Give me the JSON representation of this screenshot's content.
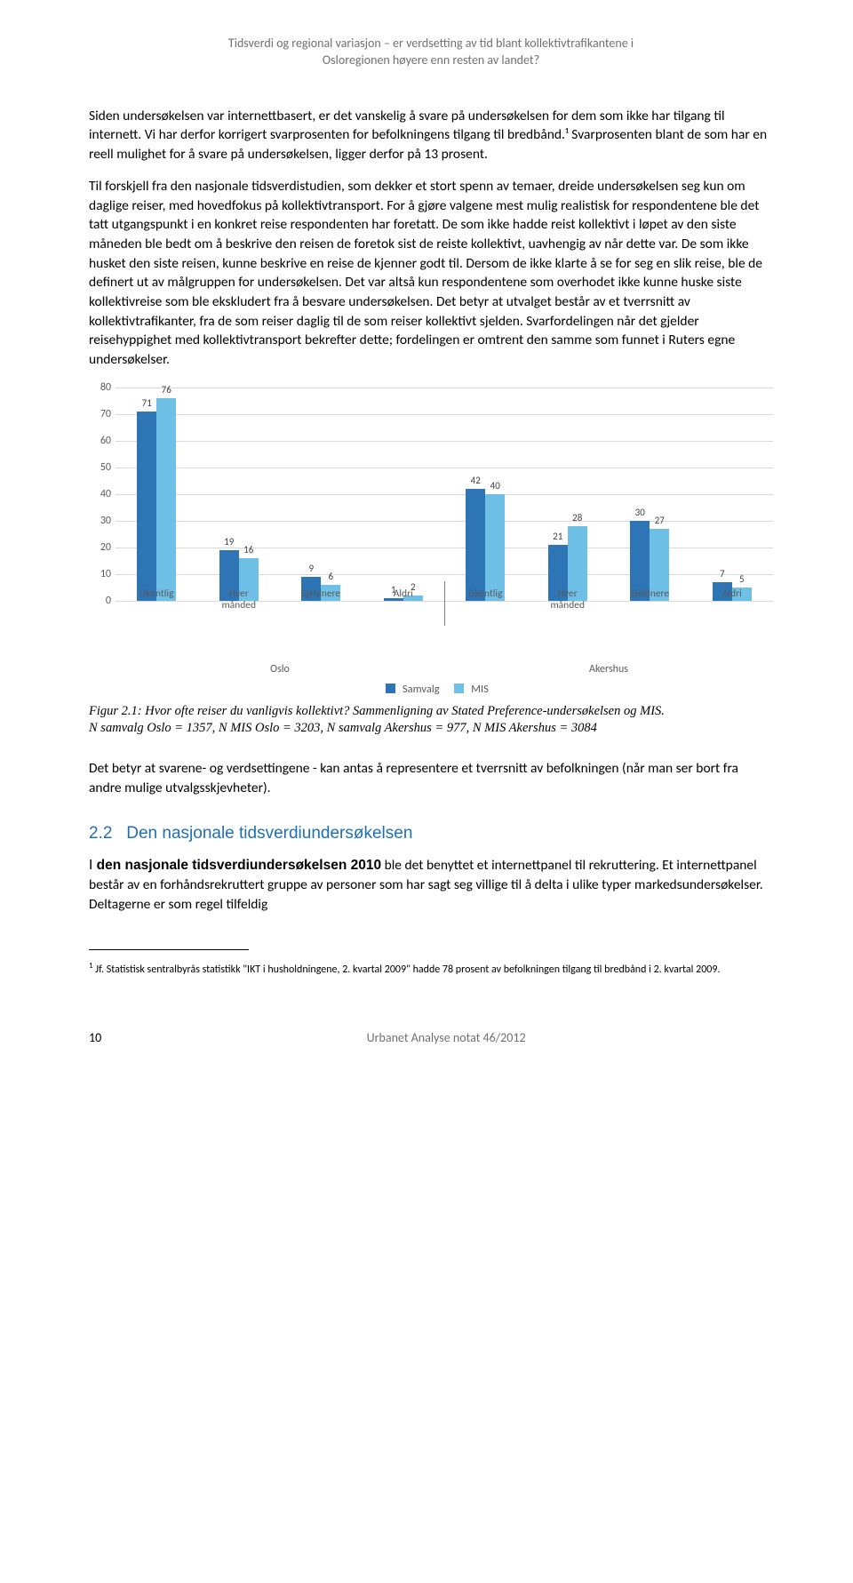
{
  "header": {
    "line1": "Tidsverdi og regional variasjon – er verdsetting av tid blant kollektivtrafikantene i",
    "line2": "Osloregionen høyere enn resten av landet?"
  },
  "paragraphs": {
    "p1": "Siden undersøkelsen var internettbasert, er det vanskelig å svare på undersøkelsen for dem som ikke har tilgang til internett. Vi har derfor korrigert svarprosenten for befolkningens tilgang til bredbånd.¹ Svarprosenten blant de som har en reell mulighet for å svare på undersøkelsen, ligger derfor på 13 prosent.",
    "p2": "Til forskjell fra den nasjonale tidsverdistudien, som dekker et stort spenn av temaer, dreide undersøkelsen seg kun om daglige reiser, med hovedfokus på kollektivtransport. For å gjøre valgene mest mulig realistisk for respondentene ble det tatt utgangspunkt i en konkret reise respondenten har foretatt. De som ikke hadde reist kollektivt i løpet av den siste måneden ble bedt om å beskrive den reisen de foretok sist de reiste kollektivt, uavhengig av når dette var. De som ikke husket den siste reisen, kunne beskrive en reise de kjenner godt til. Dersom de ikke klarte å se for seg en slik reise, ble de definert ut av målgruppen for undersøkelsen. Det var altså kun respondentene som overhodet ikke kunne huske siste kollektivreise som ble ekskludert fra å besvare undersøkelsen. Det betyr at utvalget består av et tverrsnitt av kollektivtrafikanter, fra de som reiser daglig til de som reiser kollektivt sjelden. Svarfordelingen når det gjelder reisehyppighet med kollektivtransport bekrefter dette; fordelingen er omtrent den samme som funnet i Ruters egne undersøkelser.",
    "p3": "Det betyr at svarene- og verdsettingene - kan antas å representere et tverrsnitt av befolkningen (når man ser bort fra andre mulige utvalgsskjevheter).",
    "p4": "I den nasjonale tidsverdiundersøkelsen 2010 ble det benyttet et internettpanel til rekruttering. Et internettpanel består av en forhåndsrekruttert gruppe av personer som har sagt seg villige til å delta i ulike typer markedsundersøkelser. Deltagerne er som regel tilfeldig"
  },
  "chart": {
    "type": "bar",
    "ylim": [
      0,
      80
    ],
    "ytick_step": 10,
    "axis_font_size": 12,
    "value_label_font_size": 11,
    "grid_color": "#d9d9d9",
    "axis_color": "#808080",
    "background_color": "#ffffff",
    "series": [
      {
        "name": "Samvalg",
        "color": "#2e75b6"
      },
      {
        "name": "MIS",
        "color": "#6fc0e7"
      }
    ],
    "regions": [
      {
        "name": "Oslo",
        "categories": [
          "Ukentlig",
          "Hver månded",
          "Sjeldnere",
          "Aldri"
        ],
        "samvalg": [
          71,
          19,
          9,
          1
        ],
        "mis": [
          76,
          16,
          6,
          2
        ]
      },
      {
        "name": "Akershus",
        "categories": [
          "Ukentlig",
          "Hver månded",
          "Sjeldnere",
          "Aldri"
        ],
        "samvalg": [
          42,
          21,
          30,
          7
        ],
        "mis": [
          40,
          28,
          27,
          5
        ]
      }
    ]
  },
  "caption": {
    "line1": "Figur 2.1: Hvor ofte reiser du vanligvis kollektivt? Sammenligning av Stated Preference-undersøkelsen og MIS.",
    "line2": "N samvalg Oslo = 1357, N MIS Oslo = 3203, N samvalg Akershus = 977, N MIS Akershus = 3084"
  },
  "section": {
    "number": "2.2",
    "title": "Den nasjonale tidsverdiundersøkelsen"
  },
  "footnote": {
    "marker": "1",
    "text": "Jf. Statistisk sentralbyrås statistikk \"IKT i husholdningene, 2. kvartal 2009\" hadde 78 prosent av befolkningen tilgang til bredbånd i 2. kvartal 2009."
  },
  "footer": {
    "page": "10",
    "pub": "Urbanet Analyse notat 46/2012"
  }
}
